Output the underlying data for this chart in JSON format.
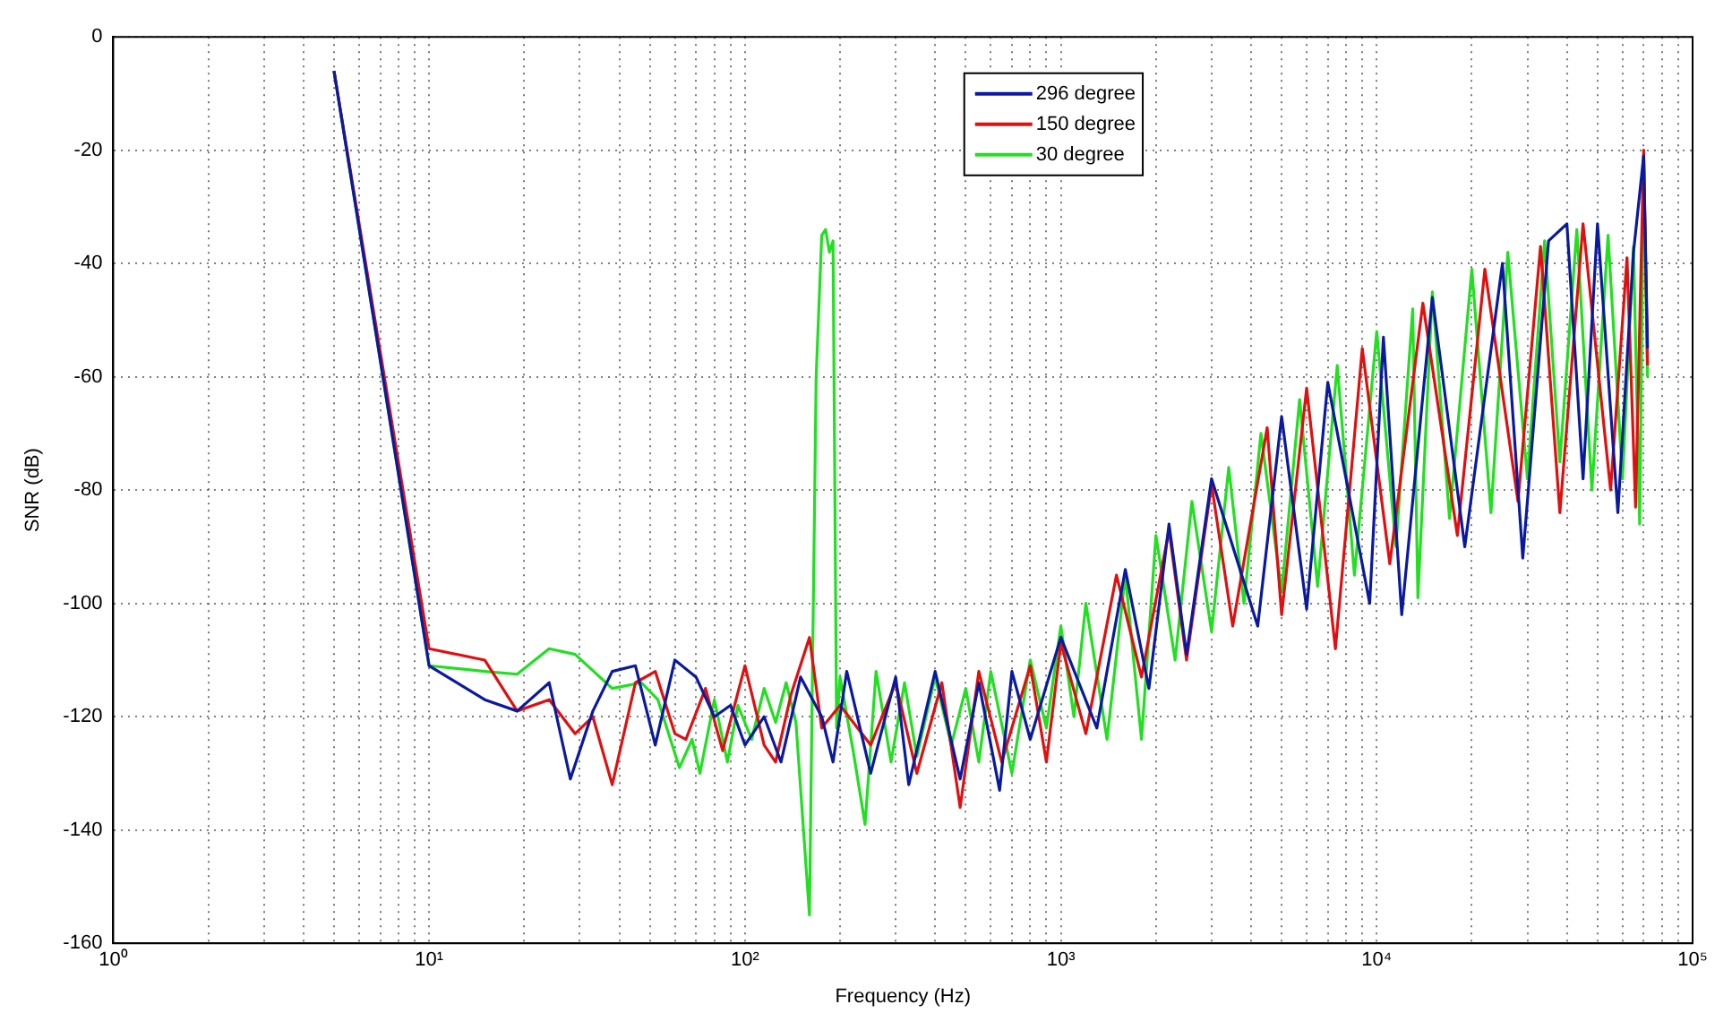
{
  "chart_data": {
    "type": "line",
    "xlabel": "Frequency (Hz)",
    "ylabel": "SNR (dB)",
    "log": "x",
    "grid": true,
    "legend": "top",
    "line_style": "solid",
    "marker": "none",
    "xlim": [
      1,
      100000
    ],
    "ylim": [
      -160,
      0
    ],
    "xticks": [
      {
        "value": 1,
        "label": "10⁰"
      },
      {
        "value": 2,
        "label": null
      },
      {
        "value": 3,
        "label": null
      },
      {
        "value": 4,
        "label": null
      },
      {
        "value": 5,
        "label": null
      },
      {
        "value": 6,
        "label": null
      },
      {
        "value": 7,
        "label": null
      },
      {
        "value": 8,
        "label": null
      },
      {
        "value": 9,
        "label": null
      },
      {
        "value": 10,
        "label": "10¹"
      },
      {
        "value": 20,
        "label": null
      },
      {
        "value": 30,
        "label": null
      },
      {
        "value": 40,
        "label": null
      },
      {
        "value": 50,
        "label": null
      },
      {
        "value": 60,
        "label": null
      },
      {
        "value": 70,
        "label": null
      },
      {
        "value": 80,
        "label": null
      },
      {
        "value": 90,
        "label": null
      },
      {
        "value": 100,
        "label": "10²"
      },
      {
        "value": 200,
        "label": null
      },
      {
        "value": 300,
        "label": null
      },
      {
        "value": 400,
        "label": null
      },
      {
        "value": 500,
        "label": null
      },
      {
        "value": 600,
        "label": null
      },
      {
        "value": 700,
        "label": null
      },
      {
        "value": 800,
        "label": null
      },
      {
        "value": 900,
        "label": null
      },
      {
        "value": 1000,
        "label": "10³"
      },
      {
        "value": 2000,
        "label": null
      },
      {
        "value": 3000,
        "label": null
      },
      {
        "value": 4000,
        "label": null
      },
      {
        "value": 5000,
        "label": null
      },
      {
        "value": 6000,
        "label": null
      },
      {
        "value": 7000,
        "label": null
      },
      {
        "value": 8000,
        "label": null
      },
      {
        "value": 9000,
        "label": null
      },
      {
        "value": 10000,
        "label": "10⁴"
      },
      {
        "value": 20000,
        "label": null
      },
      {
        "value": 30000,
        "label": null
      },
      {
        "value": 40000,
        "label": null
      },
      {
        "value": 50000,
        "label": null
      },
      {
        "value": 60000,
        "label": null
      },
      {
        "value": 70000,
        "label": null
      },
      {
        "value": 80000,
        "label": null
      },
      {
        "value": 90000,
        "label": null
      },
      {
        "value": 100000,
        "label": "10⁵"
      }
    ],
    "yticks": [
      -160,
      -140,
      -120,
      -100,
      -80,
      -60,
      -40,
      -20,
      0
    ],
    "series": [
      {
        "name": "296 degree",
        "color": "#0a1aa0",
        "x": [
          5,
          10,
          15,
          19,
          24,
          28,
          33,
          38,
          45,
          52,
          60,
          70,
          80,
          90,
          100,
          115,
          130,
          150,
          175,
          190,
          210,
          250,
          300,
          330,
          400,
          480,
          550,
          640,
          700,
          800,
          1000,
          1300,
          1600,
          1900,
          2200,
          2500,
          3000,
          4200,
          5000,
          6000,
          7000,
          9500,
          10500,
          12000,
          15000,
          19000,
          25000,
          29000,
          35000,
          40000,
          45000,
          50000,
          58000,
          65000,
          70000,
          72000
        ],
        "values": [
          -6,
          -111,
          -117,
          -119,
          -114,
          -131,
          -119,
          -112,
          -111,
          -125,
          -110,
          -113,
          -120,
          -118,
          -125,
          -120,
          -128,
          -113,
          -120,
          -128,
          -112,
          -130,
          -113,
          -132,
          -112,
          -131,
          -114,
          -133,
          -112,
          -124,
          -106,
          -122,
          -94,
          -115,
          -86,
          -109,
          -78,
          -104,
          -67,
          -101,
          -61,
          -100,
          -53,
          -102,
          -46,
          -90,
          -40,
          -92,
          -36,
          -33,
          -78,
          -33,
          -84,
          -38,
          -21,
          -55
        ]
      },
      {
        "name": "150 degree",
        "color": "#e01010",
        "x": [
          5,
          10,
          15,
          19,
          24,
          29,
          33,
          38,
          45,
          52,
          60,
          65,
          75,
          85,
          100,
          115,
          125,
          140,
          160,
          175,
          200,
          250,
          300,
          350,
          420,
          480,
          550,
          650,
          800,
          900,
          1000,
          1200,
          1500,
          1800,
          2200,
          2500,
          3000,
          3500,
          4500,
          5000,
          6000,
          7400,
          9000,
          11000,
          14000,
          18000,
          22000,
          28000,
          33000,
          38000,
          45000,
          55000,
          62000,
          66000,
          70000,
          72000
        ],
        "values": [
          -6,
          -108,
          -110,
          -119,
          -117,
          -123,
          -120,
          -132,
          -114,
          -112,
          -123,
          -124,
          -115,
          -126,
          -111,
          -125,
          -128,
          -116,
          -106,
          -122,
          -118,
          -125,
          -114,
          -130,
          -114,
          -136,
          -112,
          -128,
          -111,
          -128,
          -107,
          -123,
          -95,
          -113,
          -87,
          -110,
          -79,
          -104,
          -69,
          -102,
          -62,
          -108,
          -55,
          -93,
          -47,
          -88,
          -41,
          -82,
          -37,
          -84,
          -33,
          -80,
          -39,
          -83,
          -20,
          -58
        ]
      },
      {
        "name": "30 degree",
        "color": "#20e020",
        "x": [
          5,
          10,
          15,
          19,
          24,
          29,
          38,
          47,
          53,
          62,
          68,
          72,
          80,
          88,
          95,
          105,
          115,
          125,
          135,
          145,
          160,
          168,
          175,
          180,
          185,
          190,
          195,
          200,
          220,
          240,
          260,
          290,
          320,
          350,
          400,
          450,
          500,
          550,
          600,
          700,
          800,
          900,
          1000,
          1100,
          1200,
          1400,
          1600,
          1800,
          2000,
          2300,
          2600,
          3000,
          3400,
          3800,
          4300,
          5000,
          5700,
          6500,
          7500,
          8500,
          10000,
          11500,
          13000,
          13500,
          15000,
          17000,
          20000,
          23000,
          26000,
          30000,
          34000,
          38000,
          43000,
          48000,
          54000,
          60000,
          65000,
          68000,
          70000,
          72000
        ],
        "values": [
          -6,
          -111,
          -112,
          -112.5,
          -108,
          -109,
          -115,
          -114,
          -117,
          -129,
          -124,
          -130,
          -117,
          -128,
          -118,
          -124,
          -115,
          -121,
          -114,
          -121,
          -155,
          -60,
          -35,
          -34,
          -38,
          -36,
          -122,
          -113,
          -126,
          -139,
          -112,
          -128,
          -114,
          -127,
          -113,
          -125,
          -115,
          -128,
          -112,
          -130,
          -110,
          -122,
          -104,
          -120,
          -100,
          -124,
          -95,
          -124,
          -88,
          -110,
          -82,
          -105,
          -76,
          -100,
          -70,
          -98,
          -64,
          -97,
          -58,
          -95,
          -52,
          -90,
          -48,
          -99,
          -45,
          -85,
          -41,
          -84,
          -38,
          -78,
          -36,
          -75,
          -34,
          -80,
          -35,
          -78,
          -37,
          -86,
          -21,
          -60
        ]
      }
    ]
  }
}
